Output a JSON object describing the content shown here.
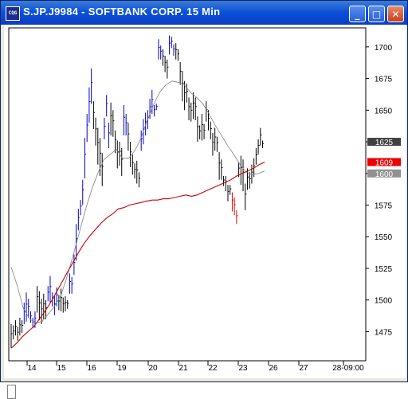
{
  "window": {
    "title": "S.JP.J9984 - SOFTBANK CORP. 15 Min",
    "icon_label": "CQG",
    "minimize_glyph": "_",
    "maximize_glyph": "□",
    "close_glyph": "✕"
  },
  "colors": {
    "title_bar": "#0a4fd8",
    "up_bar": "#0000cc",
    "down_bar": "#000000",
    "long_average": "#cc0000",
    "short_average": "#808080",
    "last_price_tag": "#404040",
    "red_tag": "#ee0000",
    "gray_tag": "#909090"
  },
  "chart_data": {
    "type": "ohlc",
    "y_axis": {
      "ylim": [
        1452,
        1715
      ],
      "ticks": [
        1475,
        1500,
        1525,
        1550,
        1575,
        1600,
        1625,
        1650,
        1675,
        1700
      ]
    },
    "x_axis": {
      "ticks": [
        "14",
        "15",
        "16",
        "19",
        "20",
        "21",
        "22",
        "23",
        "26",
        "27",
        "28-09:00"
      ]
    },
    "price_tags": [
      {
        "label": "1625",
        "value": 1625,
        "color": "#404040"
      },
      {
        "label": "1609",
        "value": 1609,
        "color": "#ee0000"
      },
      {
        "label": "1600",
        "value": 1600,
        "color": "#909090"
      }
    ],
    "series": [
      {
        "role": "price",
        "segments": [
          {
            "color": "down",
            "points": [
              [
                1481,
                1462
              ],
              [
                1480,
                1469
              ],
              [
                1484,
                1472
              ],
              [
                1479,
                1468
              ],
              [
                1486,
                1472
              ],
              [
                1484,
                1474
              ]
            ]
          },
          {
            "color": "up",
            "points": [
              [
                1498,
                1481
              ],
              [
                1506,
                1483
              ],
              [
                1501,
                1486
              ],
              [
                1491,
                1482
              ],
              [
                1486,
                1478
              ],
              [
                1491,
                1478
              ]
            ]
          },
          {
            "color": "down",
            "points": [
              [
                1511,
                1490
              ],
              [
                1507,
                1484
              ],
              [
                1501,
                1481
              ],
              [
                1505,
                1485
              ],
              [
                1500,
                1485
              ]
            ]
          },
          {
            "color": "up",
            "points": [
              [
                1511,
                1499
              ],
              [
                1519,
                1498
              ],
              [
                1506,
                1495
              ],
              [
                1503,
                1488
              ],
              [
                1510,
                1495
              ]
            ]
          },
          {
            "color": "down",
            "points": [
              [
                1504,
                1492
              ],
              [
                1509,
                1491
              ],
              [
                1502,
                1490
              ],
              [
                1503,
                1491
              ],
              [
                1500,
                1493
              ]
            ]
          },
          {
            "color": "up",
            "points": [
              [
                1521,
                1505
              ],
              [
                1518,
                1505
              ],
              [
                1536,
                1520
              ],
              [
                1560,
                1531
              ],
              [
                1572,
                1555
              ],
              [
                1579,
                1567
              ],
              [
                1595,
                1575
              ],
              [
                1628,
                1596
              ],
              [
                1647,
                1625
              ],
              [
                1668,
                1640
              ],
              [
                1683,
                1655
              ]
            ]
          },
          {
            "color": "down",
            "points": [
              [
                1657,
                1635
              ],
              [
                1644,
                1622
              ],
              [
                1636,
                1607
              ],
              [
                1628,
                1598
              ],
              [
                1616,
                1590
              ]
            ]
          },
          {
            "color": "up",
            "points": [
              [
                1644,
                1627
              ],
              [
                1662,
                1645
              ],
              [
                1640,
                1620
              ]
            ]
          },
          {
            "color": "down",
            "points": [
              [
                1656,
                1630
              ],
              [
                1650,
                1629
              ],
              [
                1634,
                1616
              ],
              [
                1626,
                1604
              ],
              [
                1625,
                1606
              ],
              [
                1620,
                1598
              ]
            ]
          },
          {
            "color": "up",
            "points": [
              [
                1654,
                1630
              ],
              [
                1647,
                1630
              ]
            ]
          },
          {
            "color": "down",
            "points": [
              [
                1640,
                1618
              ],
              [
                1625,
                1605
              ],
              [
                1615,
                1599
              ],
              [
                1608,
                1596
              ],
              [
                1610,
                1592
              ],
              [
                1601,
                1589
              ]
            ]
          },
          {
            "color": "up",
            "points": [
              [
                1634,
                1618
              ],
              [
                1643,
                1623
              ],
              [
                1648,
                1630
              ],
              [
                1650,
                1635
              ],
              [
                1659,
                1643
              ],
              [
                1666,
                1647
              ],
              [
                1654,
                1645
              ],
              [
                1655,
                1650
              ]
            ]
          },
          {
            "color": "up",
            "points": [
              [
                1706,
                1690
              ],
              [
                1701,
                1690
              ]
            ]
          },
          {
            "color": "down",
            "points": [
              [
                1698,
                1685
              ],
              [
                1693,
                1680
              ],
              [
                1690,
                1675
              ]
            ]
          },
          {
            "color": "up",
            "points": [
              [
                1709,
                1694
              ],
              [
                1708,
                1699
              ],
              [
                1702,
                1693
              ]
            ]
          },
          {
            "color": "down",
            "points": [
              [
                1703,
                1690
              ],
              [
                1698,
                1689
              ],
              [
                1688,
                1670
              ],
              [
                1681,
                1657
              ],
              [
                1673,
                1650
              ],
              [
                1671,
                1656
              ],
              [
                1660,
                1642
              ],
              [
                1656,
                1641
              ],
              [
                1664,
                1643
              ],
              [
                1660,
                1642
              ],
              [
                1645,
                1625
              ],
              [
                1638,
                1627
              ],
              [
                1647,
                1626
              ],
              [
                1639,
                1627
              ],
              [
                1657,
                1641
              ],
              [
                1650,
                1634
              ],
              [
                1641,
                1627
              ],
              [
                1632,
                1614
              ],
              [
                1636,
                1618
              ],
              [
                1629,
                1617
              ],
              [
                1617,
                1595
              ],
              [
                1611,
                1595
              ],
              [
                1598,
                1590
              ],
              [
                1598,
                1586
              ],
              [
                1591,
                1578
              ],
              [
                1591,
                1583
              ]
            ]
          },
          {
            "color": "red",
            "points": [
              [
                1585,
                1570
              ],
              [
                1581,
                1567
              ],
              [
                1571,
                1560
              ]
            ]
          },
          {
            "color": "down",
            "points": [
              [
                1609,
                1597
              ],
              [
                1614,
                1591
              ],
              [
                1611,
                1586
              ],
              [
                1592,
                1571
              ],
              [
                1604,
                1587
              ],
              [
                1601,
                1588
              ],
              [
                1607,
                1592
              ],
              [
                1612,
                1597
              ],
              [
                1620,
                1607
              ],
              [
                1627,
                1615
              ],
              [
                1636,
                1622
              ],
              [
                1626,
                1620
              ]
            ]
          }
        ]
      },
      {
        "role": "long_average",
        "color": "#cc0000",
        "points": [
          [
            1462
          ],
          [
            1466
          ],
          [
            1471
          ],
          [
            1475
          ],
          [
            1479
          ],
          [
            1485
          ],
          [
            1491
          ],
          [
            1498
          ],
          [
            1506
          ],
          [
            1514
          ],
          [
            1522
          ],
          [
            1530
          ],
          [
            1538
          ],
          [
            1545
          ],
          [
            1551
          ],
          [
            1556
          ],
          [
            1561
          ],
          [
            1565
          ],
          [
            1568
          ],
          [
            1572
          ],
          [
            1573
          ],
          [
            1575
          ],
          [
            1576
          ],
          [
            1577
          ],
          [
            1578
          ],
          [
            1579
          ],
          [
            1579
          ],
          [
            1580
          ],
          [
            1580
          ],
          [
            1581
          ],
          [
            1582
          ],
          [
            1583
          ],
          [
            1582
          ],
          [
            1583
          ],
          [
            1585
          ],
          [
            1587
          ],
          [
            1589
          ],
          [
            1591
          ],
          [
            1593
          ],
          [
            1595
          ],
          [
            1598
          ],
          [
            1600
          ],
          [
            1602
          ],
          [
            1604
          ],
          [
            1607
          ],
          [
            1609
          ]
        ]
      },
      {
        "role": "short_average",
        "color": "#808080",
        "points": [
          [
            1526
          ],
          [
            1511
          ],
          [
            1493
          ],
          [
            1485
          ],
          [
            1482
          ],
          [
            1483
          ],
          [
            1489
          ],
          [
            1495
          ],
          [
            1503
          ],
          [
            1518
          ],
          [
            1535
          ],
          [
            1553
          ],
          [
            1571
          ],
          [
            1587
          ],
          [
            1600
          ],
          [
            1611
          ],
          [
            1615
          ],
          [
            1619
          ],
          [
            1612
          ],
          [
            1612
          ],
          [
            1618
          ],
          [
            1628
          ],
          [
            1642
          ],
          [
            1654
          ],
          [
            1664
          ],
          [
            1670
          ],
          [
            1673
          ],
          [
            1672
          ],
          [
            1670
          ],
          [
            1664
          ],
          [
            1660
          ],
          [
            1655
          ],
          [
            1647
          ],
          [
            1638
          ],
          [
            1630
          ],
          [
            1622
          ],
          [
            1615
          ],
          [
            1607
          ],
          [
            1601
          ],
          [
            1599
          ],
          [
            1600
          ],
          [
            1602
          ]
        ]
      }
    ]
  }
}
